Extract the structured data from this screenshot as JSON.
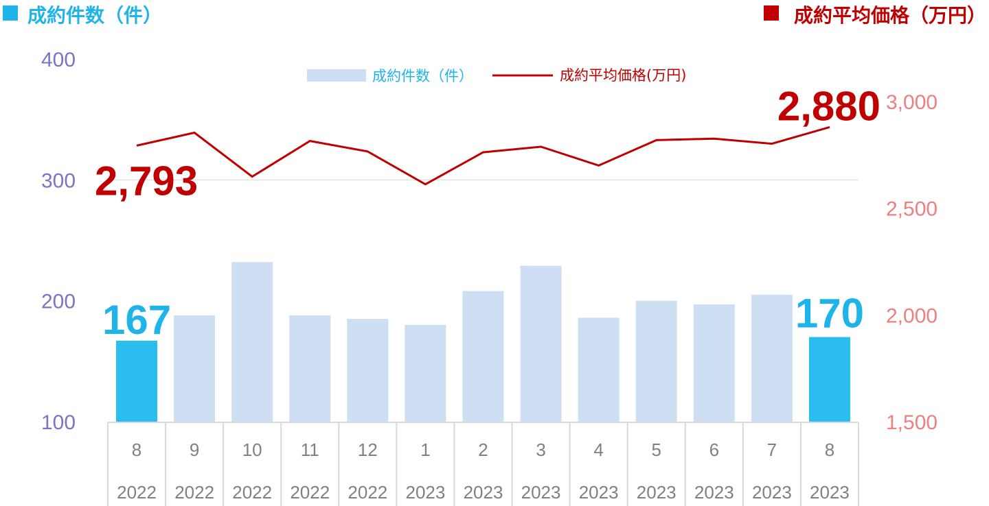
{
  "header": {
    "left_title": "成約件数（件）",
    "right_title": "成約平均価格（万円）",
    "left_color": "#1eb4ea",
    "right_color": "#c00000"
  },
  "chart_data": {
    "type": "bar",
    "title": "",
    "categories": [
      {
        "month": "8",
        "year": "2022"
      },
      {
        "month": "9",
        "year": "2022"
      },
      {
        "month": "10",
        "year": "2022"
      },
      {
        "month": "11",
        "year": "2022"
      },
      {
        "month": "12",
        "year": "2022"
      },
      {
        "month": "1",
        "year": "2023"
      },
      {
        "month": "2",
        "year": "2023"
      },
      {
        "month": "3",
        "year": "2023"
      },
      {
        "month": "4",
        "year": "2023"
      },
      {
        "month": "5",
        "year": "2023"
      },
      {
        "month": "6",
        "year": "2023"
      },
      {
        "month": "7",
        "year": "2023"
      },
      {
        "month": "8",
        "year": "2023"
      }
    ],
    "series": [
      {
        "name": "成約件数（件）",
        "type": "bar",
        "axis": "left",
        "values": [
          167,
          188,
          232,
          188,
          185,
          180,
          208,
          229,
          186,
          200,
          197,
          205,
          170
        ],
        "color": "#cfdff3",
        "highlight_color": "#2bbdee",
        "highlight_indices": [
          0,
          12
        ]
      },
      {
        "name": "成約平均価格(万円)",
        "type": "line",
        "axis": "right",
        "values": [
          2793,
          2854,
          2648,
          2815,
          2766,
          2612,
          2762,
          2788,
          2700,
          2819,
          2826,
          2802,
          2880
        ],
        "color": "#c00000"
      }
    ],
    "left_axis": {
      "ylim": [
        100,
        400
      ],
      "ticks": [
        "100",
        "200",
        "300",
        "400"
      ],
      "color": "#7a74c4"
    },
    "right_axis": {
      "ylim": [
        1500,
        3000
      ],
      "ticks": [
        "1,500",
        "2,000",
        "2,500",
        "3,000"
      ],
      "color": "#ee7f7f"
    },
    "grid": {
      "horizontal": true,
      "at": [
        300
      ]
    },
    "legend": {
      "position": "top-center"
    },
    "annotations": [
      {
        "text": "167",
        "series": 0,
        "index": 0,
        "color": "#1eb4ea"
      },
      {
        "text": "170",
        "series": 0,
        "index": 12,
        "color": "#1eb4ea"
      },
      {
        "text": "2,793",
        "series": 1,
        "index": 0,
        "color": "#c00000"
      },
      {
        "text": "2,880",
        "series": 1,
        "index": 12,
        "color": "#c00000"
      }
    ]
  }
}
